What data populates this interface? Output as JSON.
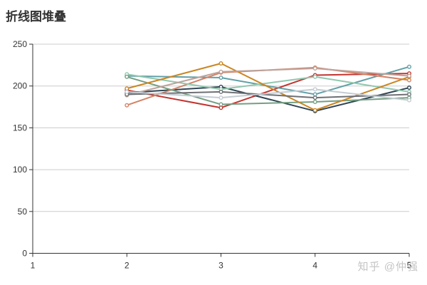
{
  "title": "折线图堆叠",
  "watermark": {
    "text": "知乎 @仲强"
  },
  "chart_data": {
    "type": "line",
    "title": "折线图堆叠",
    "x_labels": [
      "1",
      "2",
      "3",
      "4",
      "5"
    ],
    "y_ticks": [
      0,
      50,
      100,
      150,
      200,
      250
    ],
    "ylim": [
      0,
      250
    ],
    "xlabel": "",
    "ylabel": "",
    "grid": true,
    "legend": "none",
    "marker": "hollow-circle",
    "line_width": 2,
    "axis_color": "#333333",
    "grid_color": "#cccccc",
    "label_color": "#333333",
    "background": "#ffffff",
    "note": "no data at x=1; lines span x=2..5",
    "series": [
      {
        "color": "#c23531",
        "values": [
          null,
          195,
          174,
          213,
          215
        ]
      },
      {
        "color": "#2f4554",
        "values": [
          null,
          192,
          199,
          170,
          198
        ]
      },
      {
        "color": "#61a0a8",
        "values": [
          null,
          212,
          210,
          190,
          223
        ]
      },
      {
        "color": "#d48265",
        "values": [
          null,
          177,
          216,
          222,
          207
        ]
      },
      {
        "color": "#91c7ae",
        "values": [
          null,
          214,
          196,
          211,
          193
        ]
      },
      {
        "color": "#749f83",
        "values": [
          null,
          211,
          178,
          181,
          186
        ]
      },
      {
        "color": "#ca8622",
        "values": [
          null,
          197,
          227,
          171,
          211
        ]
      },
      {
        "color": "#bda29a",
        "values": [
          null,
          189,
          217,
          221,
          212
        ]
      },
      {
        "color": "#6e7074",
        "values": [
          null,
          190,
          193,
          186,
          190
        ]
      },
      {
        "color": "#c4ccd3",
        "values": [
          null,
          193,
          186,
          196,
          183
        ]
      }
    ]
  }
}
